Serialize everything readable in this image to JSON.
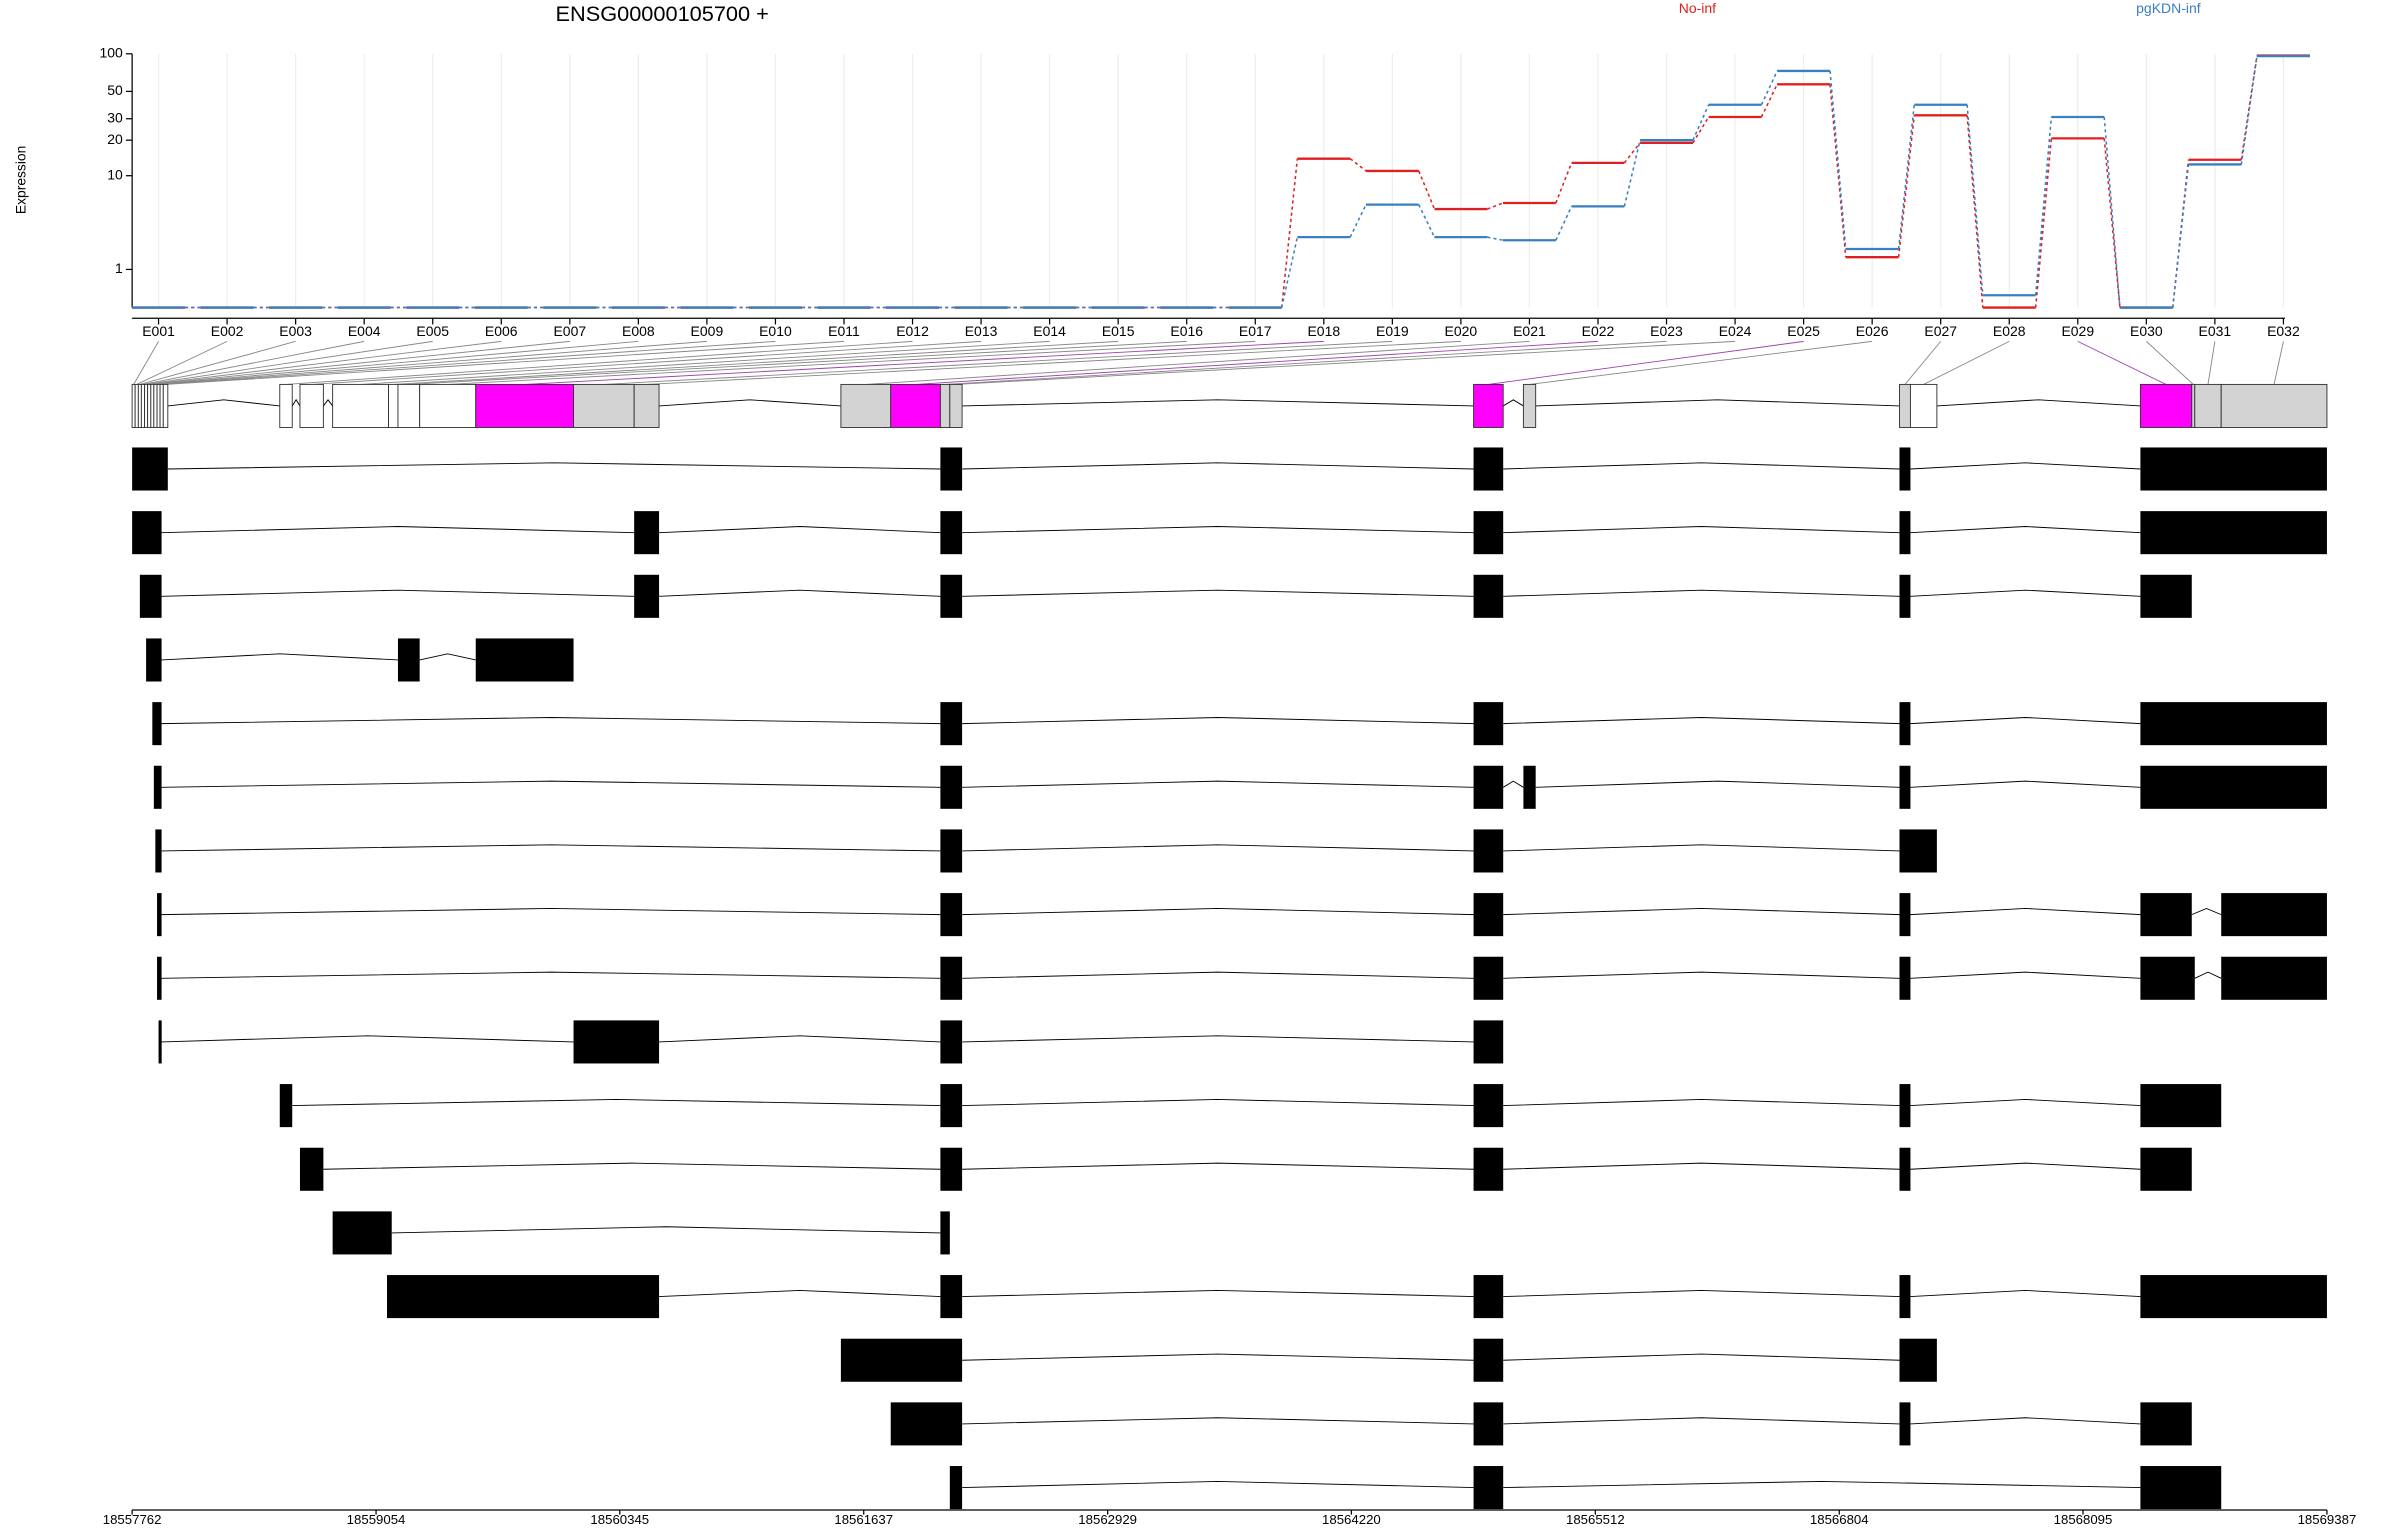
{
  "chart_data": {
    "type": "line",
    "title": "ENSG00000105700 +",
    "y_label": "Expression",
    "yscale": "log1p",
    "legend": "top-right",
    "grid": true,
    "categories": [
      "E001",
      "E002",
      "E003",
      "E004",
      "E005",
      "E006",
      "E007",
      "E008",
      "E009",
      "E010",
      "E011",
      "E012",
      "E013",
      "E014",
      "E015",
      "E016",
      "E017",
      "E018",
      "E019",
      "E020",
      "E021",
      "E022",
      "E023",
      "E024",
      "E025",
      "E026",
      "E027",
      "E028",
      "E029",
      "E030",
      "E031",
      "E032"
    ],
    "series": [
      {
        "name": "No-inf",
        "color": "#e02020",
        "values": [
          0,
          0,
          0,
          0,
          0,
          0,
          0,
          0,
          0,
          0,
          0,
          0,
          0,
          0,
          0,
          0,
          0,
          14,
          11,
          5,
          5.7,
          12.9,
          19,
          31,
          57,
          1.5,
          32,
          0,
          20.7,
          0,
          13.7,
          97
        ]
      },
      {
        "name": "pgKDN-inf",
        "color": "#3a7fc0",
        "values": [
          0,
          0,
          0,
          0,
          0,
          0,
          0,
          0,
          0,
          0,
          0,
          0,
          0,
          0,
          0,
          0,
          0,
          2.6,
          5.5,
          2.6,
          2.4,
          5.3,
          20,
          39,
          73,
          1.9,
          39,
          0.25,
          31,
          0,
          12.5,
          96
        ]
      }
    ],
    "ylim": [
      0,
      100
    ],
    "yticks": [
      1,
      10,
      20,
      30,
      50,
      100
    ],
    "xlim": [
      18557762,
      18569387
    ],
    "xticks": [
      18557762,
      18559054,
      18560345,
      18561637,
      18562929,
      18564220,
      18565512,
      18566804,
      18568095,
      18569387
    ],
    "exon_coords": [
      [
        18557762,
        18557778
      ],
      [
        18557778,
        18557795
      ],
      [
        18557795,
        18557811
      ],
      [
        18557811,
        18557828
      ],
      [
        18557828,
        18557844
      ],
      [
        18557844,
        18557861
      ],
      [
        18557861,
        18557877
      ],
      [
        18557877,
        18557894
      ],
      [
        18557894,
        18557910
      ],
      [
        18557910,
        18557927
      ],
      [
        18557927,
        18557951
      ],
      [
        18558544,
        18558610
      ],
      [
        18558651,
        18558775
      ],
      [
        18558824,
        18559120
      ],
      [
        18559120,
        18559170
      ],
      [
        18559170,
        18559285
      ],
      [
        18559285,
        18559582
      ],
      [
        18559582,
        18560100
      ],
      [
        18560100,
        18560421
      ],
      [
        18560421,
        18560553
      ],
      [
        18561516,
        18561780
      ],
      [
        18561780,
        18562043
      ],
      [
        18562043,
        18562093
      ],
      [
        18562093,
        18562158
      ],
      [
        18564867,
        18565024
      ],
      [
        18565131,
        18565196
      ],
      [
        18567123,
        18567181
      ],
      [
        18567181,
        18567321
      ],
      [
        18568399,
        18568671
      ],
      [
        18568671,
        18568687
      ],
      [
        18568687,
        18568827
      ],
      [
        18568827,
        18569387
      ]
    ],
    "exon_colors": [
      "#ffffff",
      "#ffffff",
      "#ffffff",
      "#ffffff",
      "#ffffff",
      "#ffffff",
      "#ffffff",
      "#ffffff",
      "#ffffff",
      "#ffffff",
      "#ffffff",
      "#ffffff",
      "#ffffff",
      "#ffffff",
      "#ffffff",
      "#ffffff",
      "#ffffff",
      "#ff00ff",
      "#d3d3d3",
      "#d3d3d3",
      "#d3d3d3",
      "#ff00ff",
      "#d3d3d3",
      "#d3d3d3",
      "#ff00ff",
      "#d3d3d3",
      "#d3d3d3",
      "#ffffff",
      "#ff00ff",
      "#d3d3d3",
      "#d3d3d3",
      "#d3d3d3"
    ],
    "transcripts": [
      [
        [
          18557762,
          18557951
        ],
        [
          18562043,
          18562158
        ],
        [
          18564867,
          18565024
        ],
        [
          18567123,
          18567181
        ],
        [
          18568399,
          18569387
        ]
      ],
      [
        [
          18557762,
          18557918
        ],
        [
          18560421,
          18560553
        ],
        [
          18562043,
          18562158
        ],
        [
          18564867,
          18565024
        ],
        [
          18567123,
          18567181
        ],
        [
          18568399,
          18569387
        ]
      ],
      [
        [
          18557803,
          18557918
        ],
        [
          18560421,
          18560553
        ],
        [
          18562043,
          18562158
        ],
        [
          18564867,
          18565024
        ],
        [
          18567123,
          18567181
        ],
        [
          18568399,
          18568671
        ]
      ],
      [
        [
          18557836,
          18557918
        ],
        [
          18559170,
          18559285
        ],
        [
          18559582,
          18560100
        ]
      ],
      [
        [
          18557869,
          18557918
        ],
        [
          18562043,
          18562158
        ],
        [
          18564867,
          18565024
        ],
        [
          18567123,
          18567181
        ],
        [
          18568399,
          18569387
        ]
      ],
      [
        [
          18557877,
          18557918
        ],
        [
          18562043,
          18562158
        ],
        [
          18564867,
          18565024
        ],
        [
          18565131,
          18565196
        ],
        [
          18567123,
          18567181
        ],
        [
          18568399,
          18569387
        ]
      ],
      [
        [
          18557885,
          18557918
        ],
        [
          18562043,
          18562158
        ],
        [
          18564867,
          18565024
        ],
        [
          18567123,
          18567321
        ]
      ],
      [
        [
          18557894,
          18557918
        ],
        [
          18562043,
          18562158
        ],
        [
          18564867,
          18565024
        ],
        [
          18567123,
          18567181
        ],
        [
          18568399,
          18568671
        ],
        [
          18568827,
          18569387
        ]
      ],
      [
        [
          18557894,
          18557918
        ],
        [
          18562043,
          18562158
        ],
        [
          18564867,
          18565024
        ],
        [
          18567123,
          18567181
        ],
        [
          18568399,
          18568687
        ],
        [
          18568827,
          18569387
        ]
      ],
      [
        [
          18557902,
          18557918
        ],
        [
          18560100,
          18560553
        ],
        [
          18562043,
          18562158
        ],
        [
          18564867,
          18565024
        ]
      ],
      [
        [
          18558544,
          18558610
        ],
        [
          18562043,
          18562158
        ],
        [
          18564867,
          18565024
        ],
        [
          18567123,
          18567181
        ],
        [
          18568399,
          18568827
        ]
      ],
      [
        [
          18558651,
          18558775
        ],
        [
          18562043,
          18562158
        ],
        [
          18564867,
          18565024
        ],
        [
          18567123,
          18567181
        ],
        [
          18568399,
          18568671
        ]
      ],
      [
        [
          18558824,
          18559137
        ],
        [
          18562043,
          18562093
        ]
      ],
      [
        [
          18559112,
          18560553
        ],
        [
          18562043,
          18562158
        ],
        [
          18564867,
          18565024
        ],
        [
          18567123,
          18567181
        ],
        [
          18568399,
          18569387
        ]
      ],
      [
        [
          18561516,
          18562158
        ],
        [
          18564867,
          18565024
        ],
        [
          18567123,
          18567321
        ]
      ],
      [
        [
          18561780,
          18562158
        ],
        [
          18564867,
          18565024
        ],
        [
          18567123,
          18567181
        ],
        [
          18568399,
          18568671
        ]
      ],
      [
        [
          18562093,
          18562158
        ],
        [
          18564867,
          18565024
        ],
        [
          18568399,
          18568827
        ]
      ]
    ]
  }
}
